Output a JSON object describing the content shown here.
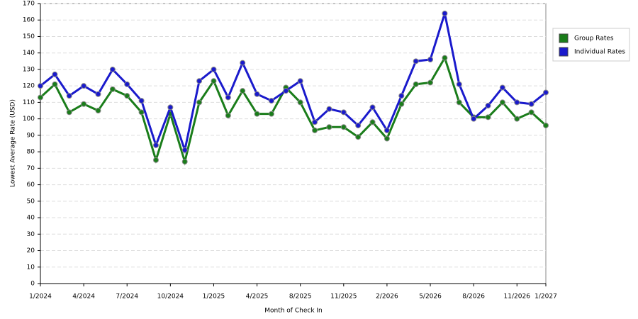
{
  "chart_data": {
    "type": "line",
    "categories": [
      "1/2024",
      null,
      null,
      "4/2024",
      null,
      null,
      "7/2024",
      null,
      null,
      "10/2024",
      null,
      null,
      "1/2025",
      null,
      null,
      "4/2025",
      null,
      null,
      "8/2025",
      null,
      null,
      "11/2025",
      null,
      null,
      "2/2026",
      null,
      null,
      "5/2026",
      null,
      null,
      "8/2026",
      null,
      null,
      "11/2026",
      null,
      "1/2027"
    ],
    "series": [
      {
        "name": "Group Rates",
        "color": "#1a7d1a",
        "values": [
          113,
          121,
          104,
          109,
          105,
          118,
          114,
          104,
          75,
          103,
          74,
          110,
          123,
          102,
          117,
          103,
          103,
          119,
          110,
          93,
          95,
          95,
          89,
          98,
          88,
          109,
          121,
          122,
          137,
          110,
          101,
          101,
          110,
          100,
          104,
          96
        ]
      },
      {
        "name": "Individual Rates",
        "color": "#1a1acc",
        "values": [
          120,
          127,
          114,
          120,
          115,
          130,
          121,
          111,
          84,
          107,
          81,
          123,
          130,
          113,
          134,
          115,
          111,
          117,
          123,
          98,
          106,
          104,
          96,
          107,
          93,
          114,
          135,
          136,
          164,
          121,
          100,
          108,
          119,
          110,
          109,
          116
        ]
      }
    ],
    "xlabel": "Month of Check In",
    "ylabel": "Lowest Average Rate (USD)",
    "ylim": [
      0,
      170
    ],
    "yticks": [
      0,
      10,
      20,
      30,
      40,
      50,
      60,
      70,
      80,
      90,
      100,
      110,
      120,
      130,
      140,
      150,
      160,
      170
    ],
    "grid": true,
    "legend": "right"
  }
}
